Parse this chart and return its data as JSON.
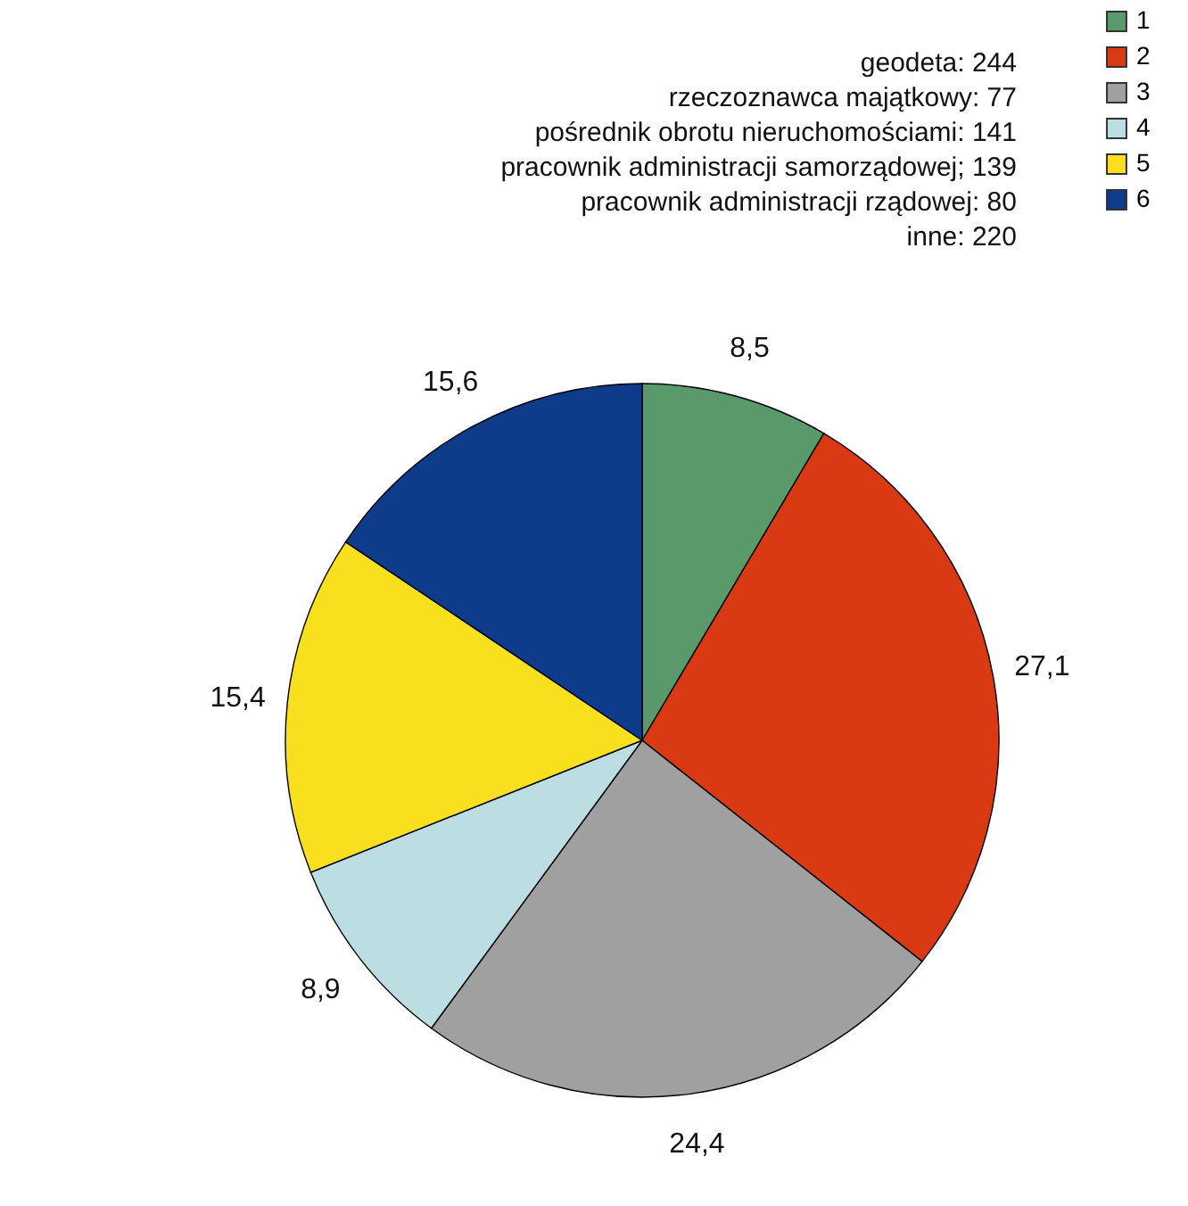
{
  "chart_data": {
    "type": "pie",
    "categories": [
      "1",
      "2",
      "3",
      "4",
      "5",
      "6"
    ],
    "values": [
      8.5,
      27.1,
      24.4,
      8.9,
      15.4,
      15.6
    ],
    "colors": [
      "#5a9a6a",
      "#d93a14",
      "#a0a0a0",
      "#bcdde2",
      "#f9e01e",
      "#0e3c8a"
    ],
    "value_labels": [
      "8,5",
      "27,1",
      "24,4",
      "8,9",
      "15,4",
      "15,6"
    ],
    "legend": "top right",
    "annotations": [
      "geodeta: 244",
      "rzeczoznawca majątkowy: 77",
      "pośrednik obrotu nieruchomościami: 141",
      "pracownik administracji samorządowej; 139",
      "pracownik administracji rządowej: 80",
      "inne: 220"
    ]
  }
}
